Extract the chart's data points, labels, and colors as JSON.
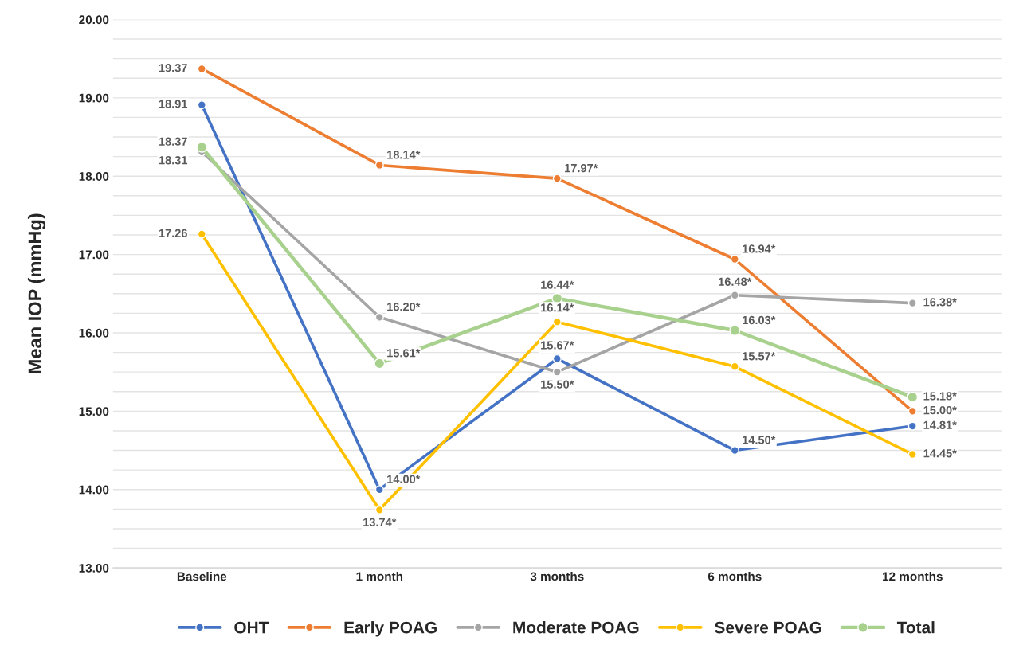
{
  "chart_data": {
    "type": "line",
    "ylabel": "Mean IOP (mmHg)",
    "categories": [
      "Baseline",
      "1 month",
      "3 months",
      "6 months",
      "12 months"
    ],
    "series": [
      {
        "name": "OHT",
        "color": "#4472c4",
        "values": [
          18.91,
          14.0,
          15.67,
          14.5,
          14.81
        ],
        "value_labels": [
          "18.91",
          "14.00*",
          "15.67*",
          "14.50*",
          "14.81*"
        ]
      },
      {
        "name": "Early POAG",
        "color": "#ed7d31",
        "values": [
          19.37,
          18.14,
          17.97,
          16.94,
          15.0
        ],
        "value_labels": [
          "19.37",
          "18.14*",
          "17.97*",
          "16.94*",
          "15.00*"
        ]
      },
      {
        "name": "Moderate POAG",
        "color": "#a5a5a5",
        "values": [
          18.31,
          16.2,
          15.5,
          16.48,
          16.38
        ],
        "value_labels": [
          "18.31",
          "16.20*",
          "15.50*",
          "16.48*",
          "16.38*"
        ]
      },
      {
        "name": "Severe POAG",
        "color": "#ffc000",
        "values": [
          17.26,
          13.74,
          16.14,
          15.57,
          14.45
        ],
        "value_labels": [
          "17.26",
          "13.74*",
          "16.14*",
          "15.57*",
          "14.45*"
        ]
      },
      {
        "name": "Total",
        "color": "#a9d18e",
        "values": [
          18.37,
          15.61,
          16.44,
          16.03,
          15.18
        ],
        "value_labels": [
          "18.37",
          "15.61*",
          "16.44*",
          "16.03*",
          "15.18*"
        ]
      }
    ],
    "ylim": [
      13,
      20
    ],
    "yticks": [
      {
        "value": 13,
        "label": "13.00"
      },
      {
        "value": 13.25,
        "label": null
      },
      {
        "value": 13.5,
        "label": null
      },
      {
        "value": 13.75,
        "label": null
      },
      {
        "value": 14,
        "label": "14.00"
      },
      {
        "value": 14.25,
        "label": null
      },
      {
        "value": 14.5,
        "label": null
      },
      {
        "value": 14.75,
        "label": null
      },
      {
        "value": 15,
        "label": "15.00"
      },
      {
        "value": 15.25,
        "label": null
      },
      {
        "value": 15.5,
        "label": null
      },
      {
        "value": 15.75,
        "label": null
      },
      {
        "value": 16,
        "label": "16.00"
      },
      {
        "value": 16.25,
        "label": null
      },
      {
        "value": 16.5,
        "label": null
      },
      {
        "value": 16.75,
        "label": null
      },
      {
        "value": 17,
        "label": "17.00"
      },
      {
        "value": 17.25,
        "label": null
      },
      {
        "value": 17.5,
        "label": null
      },
      {
        "value": 17.75,
        "label": null
      },
      {
        "value": 18,
        "label": "18.00"
      },
      {
        "value": 18.25,
        "label": null
      },
      {
        "value": 18.5,
        "label": null
      },
      {
        "value": 18.75,
        "label": null
      },
      {
        "value": 19,
        "label": "19.00"
      },
      {
        "value": 19.25,
        "label": null
      },
      {
        "value": 19.5,
        "label": null
      },
      {
        "value": 19.75,
        "label": null
      },
      {
        "value": 20,
        "label": "20.00"
      }
    ],
    "grid": "y",
    "legend": "bottom",
    "marker": "circle",
    "line_style": "solid"
  }
}
